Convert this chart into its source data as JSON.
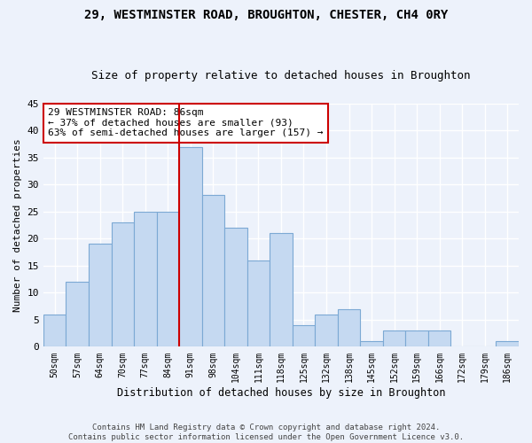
{
  "title1": "29, WESTMINSTER ROAD, BROUGHTON, CHESTER, CH4 0RY",
  "title2": "Size of property relative to detached houses in Broughton",
  "xlabel": "Distribution of detached houses by size in Broughton",
  "ylabel": "Number of detached properties",
  "bins": [
    "50sqm",
    "57sqm",
    "64sqm",
    "70sqm",
    "77sqm",
    "84sqm",
    "91sqm",
    "98sqm",
    "104sqm",
    "111sqm",
    "118sqm",
    "125sqm",
    "132sqm",
    "138sqm",
    "145sqm",
    "152sqm",
    "159sqm",
    "166sqm",
    "172sqm",
    "179sqm",
    "186sqm"
  ],
  "values": [
    6,
    12,
    19,
    23,
    25,
    25,
    37,
    28,
    22,
    16,
    21,
    4,
    6,
    7,
    1,
    3,
    3,
    3,
    0,
    0,
    1
  ],
  "bar_color": "#c5d9f1",
  "bar_edge_color": "#7ca9d4",
  "vline_x_index": 5.5,
  "vline_color": "#cc0000",
  "annotation_text": "29 WESTMINSTER ROAD: 86sqm\n← 37% of detached houses are smaller (93)\n63% of semi-detached houses are larger (157) →",
  "annotation_box_color": "#ffffff",
  "annotation_box_edge_color": "#cc0000",
  "ylim": [
    0,
    45
  ],
  "yticks": [
    0,
    5,
    10,
    15,
    20,
    25,
    30,
    35,
    40,
    45
  ],
  "footer": "Contains HM Land Registry data © Crown copyright and database right 2024.\nContains public sector information licensed under the Open Government Licence v3.0.",
  "bg_color": "#edf2fb",
  "plot_bg_color": "#edf2fb",
  "grid_color": "#ffffff",
  "title1_fontsize": 10,
  "title2_fontsize": 9
}
